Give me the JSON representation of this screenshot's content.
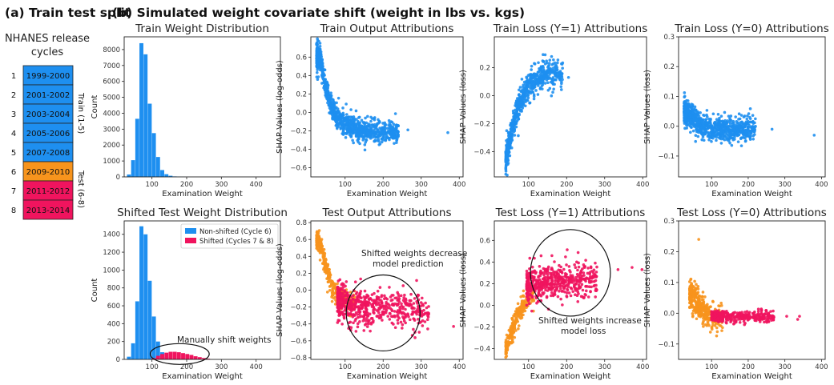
{
  "panel_a_title": "(a) Train test split",
  "panel_b_title": "(b) Simulated weight covariate shift (weight in lbs vs. kgs)",
  "nhanes": {
    "title_line1": "NHANES release",
    "title_line2": "cycles",
    "cycles": [
      {
        "num": "1",
        "label": "1999-2000",
        "group": "train"
      },
      {
        "num": "2",
        "label": "2001-2002",
        "group": "train"
      },
      {
        "num": "3",
        "label": "2003-2004",
        "group": "train"
      },
      {
        "num": "4",
        "label": "2005-2006",
        "group": "train"
      },
      {
        "num": "5",
        "label": "2007-2008",
        "group": "train"
      },
      {
        "num": "6",
        "label": "2009-2010",
        "group": "test_nonshift"
      },
      {
        "num": "7",
        "label": "2011-2012",
        "group": "test_shift"
      },
      {
        "num": "8",
        "label": "2013-2014",
        "group": "test_shift"
      }
    ],
    "train_label": "Train (1-5)",
    "test_label": "Test (6-8)"
  },
  "colors": {
    "train": "#1e8ff0",
    "nonshift": "#f7941d",
    "shift": "#f0145e",
    "train_label": "#2a9df4",
    "test_label": "#3cb44b"
  },
  "annotations": {
    "manual_shift": "Manually shift weights",
    "decrease_l1": "Shifted weights decrease",
    "decrease_l2": "model prediction",
    "increase_l1": "Shifted weights increase",
    "increase_l2": "model loss"
  },
  "chart_data": [
    {
      "id": "train_weight_dist",
      "type": "bar",
      "title": "Train Weight Distribution",
      "xlabel": "Examination Weight",
      "ylabel": "Count",
      "xlim": [
        20,
        470
      ],
      "ylim": [
        0,
        8800
      ],
      "xticks": [
        100,
        200,
        300,
        400
      ],
      "yticks": [
        0,
        1000,
        2000,
        3000,
        4000,
        5000,
        6000,
        7000,
        8000
      ],
      "bin_width": 12,
      "series": [
        {
          "name": "",
          "color_key": "train",
          "bins": [
            [
              28,
              150
            ],
            [
              40,
              1050
            ],
            [
              52,
              3650
            ],
            [
              64,
              8400
            ],
            [
              76,
              7700
            ],
            [
              88,
              4600
            ],
            [
              100,
              2750
            ],
            [
              112,
              1250
            ],
            [
              124,
              430
            ],
            [
              136,
              170
            ],
            [
              148,
              70
            ],
            [
              160,
              30
            ],
            [
              172,
              15
            ],
            [
              184,
              8
            ],
            [
              196,
              4
            ]
          ]
        }
      ]
    },
    {
      "id": "train_output_attr",
      "type": "scatter",
      "title": "Train Output Attributions",
      "xlabel": "Examination Weight",
      "ylabel": "SHAP Values (log-odds)",
      "xlim": [
        10,
        410
      ],
      "ylim": [
        -0.7,
        0.82
      ],
      "xticks": [
        100,
        200,
        300,
        400
      ],
      "yticks": [
        -0.6,
        -0.4,
        -0.2,
        0.0,
        0.2,
        0.4,
        0.6
      ],
      "series": [
        {
          "name": "",
          "color_key": "train",
          "n": 1000,
          "seed": 11,
          "curve": [
            [
              25,
              0.6
            ],
            [
              35,
              0.6
            ],
            [
              45,
              0.35
            ],
            [
              55,
              0.2
            ],
            [
              65,
              0.05
            ],
            [
              80,
              -0.05
            ],
            [
              100,
              -0.12
            ],
            [
              130,
              -0.18
            ],
            [
              180,
              -0.22
            ],
            [
              240,
              -0.22
            ]
          ],
          "xrange": [
            25,
            240
          ],
          "spread": 0.08,
          "extra": [
            [
              265,
              -0.19
            ],
            [
              370,
              -0.22
            ]
          ]
        }
      ]
    },
    {
      "id": "train_loss_y1",
      "type": "scatter",
      "title": "Train Loss (Y=1) Attributions",
      "xlabel": "Examination Weight",
      "ylabel": "SHAP Values (loss)",
      "xlim": [
        10,
        410
      ],
      "ylim": [
        -0.58,
        0.42
      ],
      "xticks": [
        100,
        200,
        300,
        400
      ],
      "yticks": [
        -0.4,
        -0.2,
        0.0,
        0.2
      ],
      "series": [
        {
          "name": "",
          "color_key": "train",
          "n": 700,
          "seed": 23,
          "curve": [
            [
              40,
              -0.45
            ],
            [
              55,
              -0.25
            ],
            [
              70,
              -0.1
            ],
            [
              90,
              0.03
            ],
            [
              110,
              0.1
            ],
            [
              140,
              0.15
            ],
            [
              190,
              0.15
            ]
          ],
          "xrange": [
            40,
            190
          ],
          "spread": 0.06,
          "extra": [
            [
              205,
              0.13
            ]
          ]
        }
      ]
    },
    {
      "id": "train_loss_y0",
      "type": "scatter",
      "title": "Train Loss (Y=0) Attributions",
      "xlabel": "Examination Weight",
      "ylabel": "SHAP Values (loss)",
      "xlim": [
        10,
        410
      ],
      "ylim": [
        -0.17,
        0.3
      ],
      "xticks": [
        100,
        200,
        300,
        400
      ],
      "yticks": [
        -0.1,
        0.0,
        0.1,
        0.2,
        0.3
      ],
      "series": [
        {
          "name": "",
          "color_key": "train",
          "n": 900,
          "seed": 37,
          "curve": [
            [
              25,
              0.05
            ],
            [
              40,
              0.04
            ],
            [
              55,
              0.02
            ],
            [
              75,
              0.0
            ],
            [
              100,
              -0.01
            ],
            [
              140,
              -0.01
            ],
            [
              220,
              -0.01
            ]
          ],
          "xrange": [
            25,
            220
          ],
          "spread": 0.025,
          "extra": [
            [
              265,
              -0.01
            ],
            [
              380,
              -0.03
            ]
          ]
        }
      ]
    },
    {
      "id": "shifted_test_weight_dist",
      "type": "bar",
      "title": "Shifted Test Weight Distribution",
      "xlabel": "Examination Weight",
      "ylabel": "Count",
      "xlim": [
        20,
        470
      ],
      "ylim": [
        0,
        1550
      ],
      "xticks": [
        100,
        200,
        300,
        400
      ],
      "yticks": [
        0,
        200,
        400,
        600,
        800,
        1000,
        1200,
        1400
      ],
      "bin_width": 12,
      "legend": [
        {
          "label": "Non-shifted (Cycle 6)",
          "color_key": "train"
        },
        {
          "label": "Shifted (Cycles 7 & 8)",
          "color_key": "shift"
        }
      ],
      "series": [
        {
          "name": "Non-shifted (Cycle 6)",
          "color_key": "train",
          "bins": [
            [
              28,
              30
            ],
            [
              40,
              180
            ],
            [
              52,
              650
            ],
            [
              64,
              1490
            ],
            [
              76,
              1400
            ],
            [
              88,
              880
            ],
            [
              100,
              480
            ],
            [
              112,
              200
            ],
            [
              124,
              80
            ],
            [
              136,
              25
            ]
          ]
        },
        {
          "name": "Shifted (Cycles 7 & 8)",
          "color_key": "shift",
          "bins": [
            [
              100,
              15
            ],
            [
              112,
              40
            ],
            [
              124,
              60
            ],
            [
              136,
              75
            ],
            [
              148,
              85
            ],
            [
              160,
              85
            ],
            [
              172,
              80
            ],
            [
              184,
              70
            ],
            [
              196,
              60
            ],
            [
              208,
              50
            ],
            [
              220,
              35
            ],
            [
              232,
              25
            ],
            [
              244,
              15
            ],
            [
              256,
              8
            ]
          ]
        }
      ]
    },
    {
      "id": "test_output_attr",
      "type": "scatter",
      "title": "Test Output Attributions",
      "xlabel": "Examination Weight",
      "ylabel": "SHAP Values (log-odds)",
      "xlim": [
        10,
        410
      ],
      "ylim": [
        -0.82,
        0.82
      ],
      "xticks": [
        100,
        200,
        300,
        400
      ],
      "yticks": [
        -0.8,
        -0.6,
        -0.4,
        -0.2,
        0.0,
        0.2,
        0.4,
        0.6,
        0.8
      ],
      "series": [
        {
          "name": "",
          "color_key": "nonshift",
          "n": 350,
          "seed": 51,
          "curve": [
            [
              25,
              0.6
            ],
            [
              35,
              0.55
            ],
            [
              45,
              0.35
            ],
            [
              55,
              0.2
            ],
            [
              65,
              0.05
            ],
            [
              80,
              -0.05
            ],
            [
              100,
              -0.12
            ],
            [
              120,
              -0.16
            ]
          ],
          "xrange": [
            25,
            125
          ],
          "spread": 0.08,
          "extra": []
        },
        {
          "name": "",
          "color_key": "shift",
          "n": 600,
          "seed": 63,
          "curve": [
            [
              75,
              -0.1
            ],
            [
              110,
              -0.18
            ],
            [
              150,
              -0.2
            ],
            [
              200,
              -0.2
            ],
            [
              260,
              -0.22
            ],
            [
              320,
              -0.22
            ]
          ],
          "xrange": [
            80,
            320
          ],
          "spread": 0.13,
          "extra": [
            [
              385,
              -0.43
            ]
          ]
        }
      ],
      "ellipse": {
        "cx": 200,
        "cy": -0.27,
        "rx": 97,
        "ry": 0.45
      }
    },
    {
      "id": "test_loss_y1",
      "type": "scatter",
      "title": "Test Loss (Y=1) Attributions",
      "xlabel": "Examination Weight",
      "ylabel": "SHAP Values (loss)",
      "xlim": [
        10,
        410
      ],
      "ylim": [
        -0.5,
        0.78
      ],
      "xticks": [
        100,
        200,
        300,
        400
      ],
      "yticks": [
        -0.4,
        -0.2,
        0.0,
        0.2,
        0.4,
        0.6
      ],
      "series": [
        {
          "name": "",
          "color_key": "nonshift",
          "n": 250,
          "seed": 71,
          "curve": [
            [
              40,
              -0.4
            ],
            [
              55,
              -0.25
            ],
            [
              70,
              -0.1
            ],
            [
              90,
              0.02
            ],
            [
              110,
              0.1
            ]
          ],
          "xrange": [
            40,
            115
          ],
          "spread": 0.06,
          "extra": []
        },
        {
          "name": "",
          "color_key": "shift",
          "n": 550,
          "seed": 83,
          "curve": [
            [
              90,
              0.15
            ],
            [
              120,
              0.2
            ],
            [
              160,
              0.23
            ],
            [
              220,
              0.23
            ],
            [
              280,
              0.25
            ]
          ],
          "xrange": [
            95,
            280
          ],
          "spread": 0.1,
          "extra": [
            [
              372,
              0.35
            ],
            [
              398,
              0.33
            ],
            [
              335,
              0.33
            ]
          ]
        }
      ],
      "ellipse": {
        "cx": 210,
        "cy": 0.3,
        "rx": 105,
        "ry": 0.4
      }
    },
    {
      "id": "test_loss_y0",
      "type": "scatter",
      "title": "Test Loss (Y=0) Attributions",
      "xlabel": "Examination Weight",
      "ylabel": "SHAP Values (loss)",
      "xlim": [
        10,
        410
      ],
      "ylim": [
        -0.15,
        0.3
      ],
      "xticks": [
        100,
        200,
        300,
        400
      ],
      "yticks": [
        -0.1,
        0.0,
        0.1,
        0.2,
        0.3
      ],
      "series": [
        {
          "name": "",
          "color_key": "nonshift",
          "n": 400,
          "seed": 91,
          "curve": [
            [
              40,
              0.06
            ],
            [
              55,
              0.05
            ],
            [
              65,
              0.03
            ],
            [
              80,
              0.0
            ],
            [
              100,
              -0.01
            ],
            [
              130,
              -0.02
            ]
          ],
          "xrange": [
            40,
            130
          ],
          "spread": 0.03,
          "extra": [
            [
              65,
              0.24
            ]
          ]
        },
        {
          "name": "",
          "color_key": "shift",
          "n": 350,
          "seed": 97,
          "curve": [
            [
              100,
              -0.01
            ],
            [
              160,
              -0.01
            ],
            [
              220,
              -0.01
            ],
            [
              270,
              -0.01
            ]
          ],
          "xrange": [
            100,
            270
          ],
          "spread": 0.012,
          "extra": [
            [
              305,
              -0.01
            ],
            [
              335,
              -0.02
            ],
            [
              340,
              -0.01
            ]
          ]
        }
      ]
    }
  ]
}
